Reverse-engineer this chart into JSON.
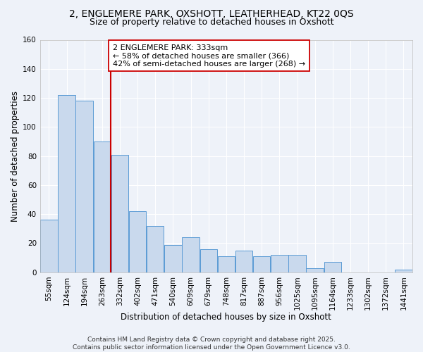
{
  "title1": "2, ENGLEMERE PARK, OXSHOTT, LEATHERHEAD, KT22 0QS",
  "title2": "Size of property relative to detached houses in Oxshott",
  "xlabel": "Distribution of detached houses by size in Oxshott",
  "ylabel": "Number of detached properties",
  "categories": [
    "55sqm",
    "124sqm",
    "194sqm",
    "263sqm",
    "332sqm",
    "402sqm",
    "471sqm",
    "540sqm",
    "609sqm",
    "679sqm",
    "748sqm",
    "817sqm",
    "887sqm",
    "956sqm",
    "1025sqm",
    "1095sqm",
    "1164sqm",
    "1233sqm",
    "1302sqm",
    "1372sqm",
    "1441sqm"
  ],
  "values": [
    36,
    122,
    118,
    90,
    81,
    42,
    32,
    19,
    24,
    16,
    11,
    15,
    11,
    12,
    12,
    3,
    7,
    0,
    0,
    0,
    2
  ],
  "bar_color": "#c9d9ed",
  "bar_edge_color": "#5b9bd5",
  "highlight_bar_index": 4,
  "highlight_color": "#cc0000",
  "annotation_line1": "2 ENGLEMERE PARK: 333sqm",
  "annotation_line2": "← 58% of detached houses are smaller (366)",
  "annotation_line3": "42% of semi-detached houses are larger (268) →",
  "annotation_box_color": "#ffffff",
  "annotation_box_edge": "#cc0000",
  "ylim": [
    0,
    160
  ],
  "yticks": [
    0,
    20,
    40,
    60,
    80,
    100,
    120,
    140,
    160
  ],
  "footer": "Contains HM Land Registry data © Crown copyright and database right 2025.\nContains public sector information licensed under the Open Government Licence v3.0.",
  "bg_color": "#eef2f9",
  "grid_color": "#ffffff",
  "title_fontsize": 10,
  "subtitle_fontsize": 9,
  "tick_fontsize": 7.5,
  "axis_label_fontsize": 8.5,
  "footer_fontsize": 6.5,
  "annotation_fontsize": 8
}
